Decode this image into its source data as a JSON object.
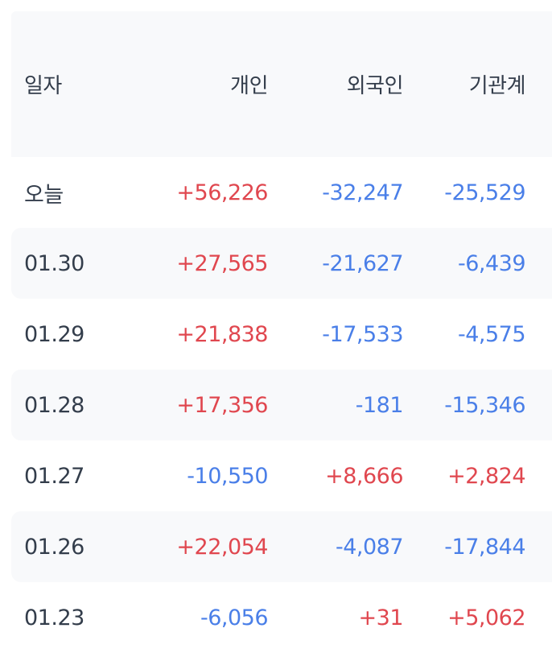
{
  "headers": [
    "일자",
    "개인",
    "외국인",
    "기관계"
  ],
  "colors": {
    "positive": "#e0474f",
    "negative": "#4a7fe8",
    "text": "#333d4b",
    "stripe": "#f8f9fb"
  },
  "rows": [
    {
      "date": "오늘",
      "individual": "+56,226",
      "foreign": "-32,247",
      "institution": "-25,529"
    },
    {
      "date": "01.30",
      "individual": "+27,565",
      "foreign": "-21,627",
      "institution": "-6,439"
    },
    {
      "date": "01.29",
      "individual": "+21,838",
      "foreign": "-17,533",
      "institution": "-4,575"
    },
    {
      "date": "01.28",
      "individual": "+17,356",
      "foreign": "-181",
      "institution": "-15,346"
    },
    {
      "date": "01.27",
      "individual": "-10,550",
      "foreign": "+8,666",
      "institution": "+2,824"
    },
    {
      "date": "01.26",
      "individual": "+22,054",
      "foreign": "-4,087",
      "institution": "-17,844"
    },
    {
      "date": "01.23",
      "individual": "-6,056",
      "foreign": "+31",
      "institution": "+5,062"
    }
  ]
}
